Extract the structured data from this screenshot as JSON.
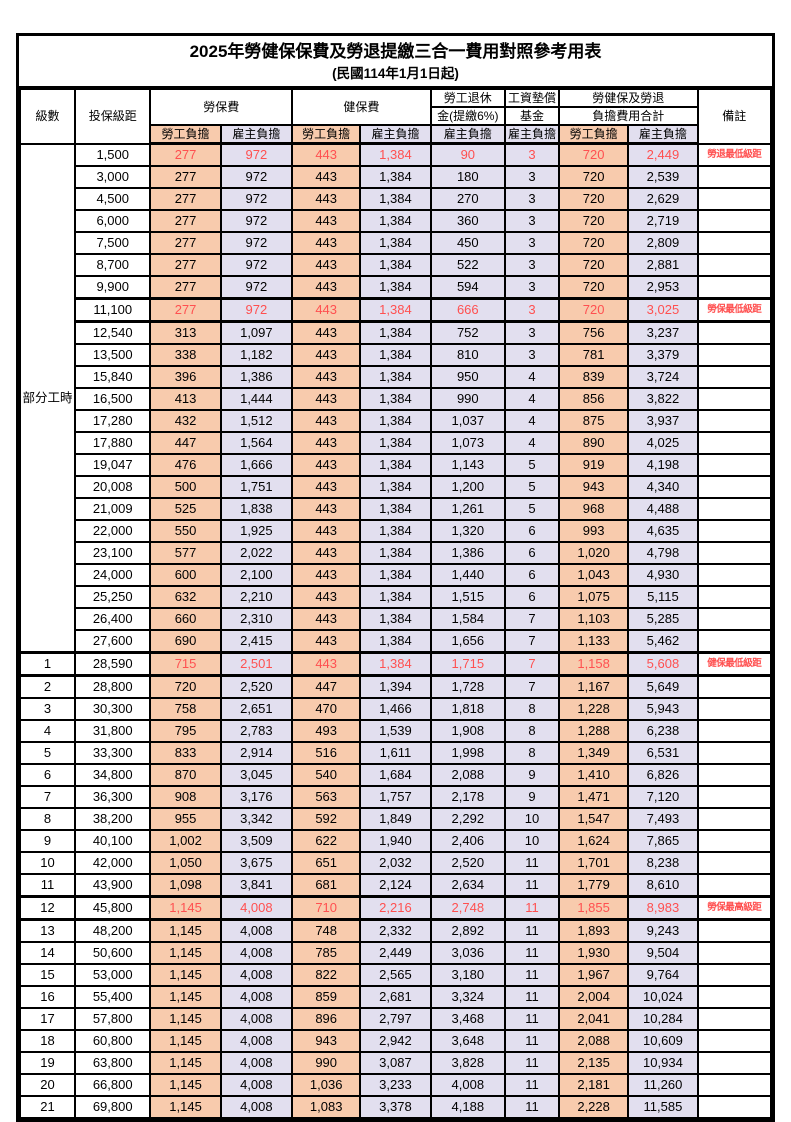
{
  "title": "2025年勞健保保費及勞退提繳三合一費用對照參考用表",
  "subtitle": "(民國114年1月1日起)",
  "header": {
    "level": "級數",
    "salary": "投保級距",
    "labor": "勞保費",
    "health": "健保費",
    "pension_line1": "勞工退休",
    "pension_line2": "金(提繳6%)",
    "wage_fund_line1": "工資墊償",
    "wage_fund_line2": "基金",
    "total_line1": "勞健保及勞退",
    "total_line2": "負擔費用合計",
    "remark": "備註",
    "employee": "勞工負擔",
    "employer": "雇主負擔"
  },
  "part_time_label": "部分工時",
  "colors": {
    "employee_bg": "#F8CBAD",
    "employer_bg": "#E2DFEF",
    "highlight_red": "#FF5050",
    "border": "#000000"
  },
  "rows": [
    {
      "level": "",
      "salary": "1,500",
      "cells": [
        "277",
        "972",
        "443",
        "1,384",
        "90",
        "3",
        "720",
        "2,449"
      ],
      "remark": "勞退最低級距",
      "red": true,
      "thick": false
    },
    {
      "level": "",
      "salary": "3,000",
      "cells": [
        "277",
        "972",
        "443",
        "1,384",
        "180",
        "3",
        "720",
        "2,539"
      ],
      "remark": "",
      "red": false,
      "thick": false
    },
    {
      "level": "",
      "salary": "4,500",
      "cells": [
        "277",
        "972",
        "443",
        "1,384",
        "270",
        "3",
        "720",
        "2,629"
      ],
      "remark": "",
      "red": false,
      "thick": false
    },
    {
      "level": "",
      "salary": "6,000",
      "cells": [
        "277",
        "972",
        "443",
        "1,384",
        "360",
        "3",
        "720",
        "2,719"
      ],
      "remark": "",
      "red": false,
      "thick": false
    },
    {
      "level": "",
      "salary": "7,500",
      "cells": [
        "277",
        "972",
        "443",
        "1,384",
        "450",
        "3",
        "720",
        "2,809"
      ],
      "remark": "",
      "red": false,
      "thick": false
    },
    {
      "level": "",
      "salary": "8,700",
      "cells": [
        "277",
        "972",
        "443",
        "1,384",
        "522",
        "3",
        "720",
        "2,881"
      ],
      "remark": "",
      "red": false,
      "thick": false
    },
    {
      "level": "",
      "salary": "9,900",
      "cells": [
        "277",
        "972",
        "443",
        "1,384",
        "594",
        "3",
        "720",
        "2,953"
      ],
      "remark": "",
      "red": false,
      "thick": false
    },
    {
      "level": "",
      "salary": "11,100",
      "cells": [
        "277",
        "972",
        "443",
        "1,384",
        "666",
        "3",
        "720",
        "3,025"
      ],
      "remark": "勞保最低級距",
      "red": true,
      "thick": true
    },
    {
      "level": "",
      "salary": "12,540",
      "cells": [
        "313",
        "1,097",
        "443",
        "1,384",
        "752",
        "3",
        "756",
        "3,237"
      ],
      "remark": "",
      "red": false,
      "thick": false
    },
    {
      "level": "",
      "salary": "13,500",
      "cells": [
        "338",
        "1,182",
        "443",
        "1,384",
        "810",
        "3",
        "781",
        "3,379"
      ],
      "remark": "",
      "red": false,
      "thick": false
    },
    {
      "level": "",
      "salary": "15,840",
      "cells": [
        "396",
        "1,386",
        "443",
        "1,384",
        "950",
        "4",
        "839",
        "3,724"
      ],
      "remark": "",
      "red": false,
      "thick": false
    },
    {
      "level": "",
      "salary": "16,500",
      "cells": [
        "413",
        "1,444",
        "443",
        "1,384",
        "990",
        "4",
        "856",
        "3,822"
      ],
      "remark": "",
      "red": false,
      "thick": false
    },
    {
      "level": "",
      "salary": "17,280",
      "cells": [
        "432",
        "1,512",
        "443",
        "1,384",
        "1,037",
        "4",
        "875",
        "3,937"
      ],
      "remark": "",
      "red": false,
      "thick": false
    },
    {
      "level": "",
      "salary": "17,880",
      "cells": [
        "447",
        "1,564",
        "443",
        "1,384",
        "1,073",
        "4",
        "890",
        "4,025"
      ],
      "remark": "",
      "red": false,
      "thick": false
    },
    {
      "level": "",
      "salary": "19,047",
      "cells": [
        "476",
        "1,666",
        "443",
        "1,384",
        "1,143",
        "5",
        "919",
        "4,198"
      ],
      "remark": "",
      "red": false,
      "thick": false
    },
    {
      "level": "",
      "salary": "20,008",
      "cells": [
        "500",
        "1,751",
        "443",
        "1,384",
        "1,200",
        "5",
        "943",
        "4,340"
      ],
      "remark": "",
      "red": false,
      "thick": false
    },
    {
      "level": "",
      "salary": "21,009",
      "cells": [
        "525",
        "1,838",
        "443",
        "1,384",
        "1,261",
        "5",
        "968",
        "4,488"
      ],
      "remark": "",
      "red": false,
      "thick": false
    },
    {
      "level": "",
      "salary": "22,000",
      "cells": [
        "550",
        "1,925",
        "443",
        "1,384",
        "1,320",
        "6",
        "993",
        "4,635"
      ],
      "remark": "",
      "red": false,
      "thick": false
    },
    {
      "level": "",
      "salary": "23,100",
      "cells": [
        "577",
        "2,022",
        "443",
        "1,384",
        "1,386",
        "6",
        "1,020",
        "4,798"
      ],
      "remark": "",
      "red": false,
      "thick": false
    },
    {
      "level": "",
      "salary": "24,000",
      "cells": [
        "600",
        "2,100",
        "443",
        "1,384",
        "1,440",
        "6",
        "1,043",
        "4,930"
      ],
      "remark": "",
      "red": false,
      "thick": false
    },
    {
      "level": "",
      "salary": "25,250",
      "cells": [
        "632",
        "2,210",
        "443",
        "1,384",
        "1,515",
        "6",
        "1,075",
        "5,115"
      ],
      "remark": "",
      "red": false,
      "thick": false
    },
    {
      "level": "",
      "salary": "26,400",
      "cells": [
        "660",
        "2,310",
        "443",
        "1,384",
        "1,584",
        "7",
        "1,103",
        "5,285"
      ],
      "remark": "",
      "red": false,
      "thick": false
    },
    {
      "level": "",
      "salary": "27,600",
      "cells": [
        "690",
        "2,415",
        "443",
        "1,384",
        "1,656",
        "7",
        "1,133",
        "5,462"
      ],
      "remark": "",
      "red": false,
      "thick": false
    },
    {
      "level": "1",
      "salary": "28,590",
      "cells": [
        "715",
        "2,501",
        "443",
        "1,384",
        "1,715",
        "7",
        "1,158",
        "5,608"
      ],
      "remark": "健保最低級距",
      "red": true,
      "thick": true
    },
    {
      "level": "2",
      "salary": "28,800",
      "cells": [
        "720",
        "2,520",
        "447",
        "1,394",
        "1,728",
        "7",
        "1,167",
        "5,649"
      ],
      "remark": "",
      "red": false,
      "thick": false
    },
    {
      "level": "3",
      "salary": "30,300",
      "cells": [
        "758",
        "2,651",
        "470",
        "1,466",
        "1,818",
        "8",
        "1,228",
        "5,943"
      ],
      "remark": "",
      "red": false,
      "thick": false
    },
    {
      "level": "4",
      "salary": "31,800",
      "cells": [
        "795",
        "2,783",
        "493",
        "1,539",
        "1,908",
        "8",
        "1,288",
        "6,238"
      ],
      "remark": "",
      "red": false,
      "thick": false
    },
    {
      "level": "5",
      "salary": "33,300",
      "cells": [
        "833",
        "2,914",
        "516",
        "1,611",
        "1,998",
        "8",
        "1,349",
        "6,531"
      ],
      "remark": "",
      "red": false,
      "thick": false
    },
    {
      "level": "6",
      "salary": "34,800",
      "cells": [
        "870",
        "3,045",
        "540",
        "1,684",
        "2,088",
        "9",
        "1,410",
        "6,826"
      ],
      "remark": "",
      "red": false,
      "thick": false
    },
    {
      "level": "7",
      "salary": "36,300",
      "cells": [
        "908",
        "3,176",
        "563",
        "1,757",
        "2,178",
        "9",
        "1,471",
        "7,120"
      ],
      "remark": "",
      "red": false,
      "thick": false
    },
    {
      "level": "8",
      "salary": "38,200",
      "cells": [
        "955",
        "3,342",
        "592",
        "1,849",
        "2,292",
        "10",
        "1,547",
        "7,493"
      ],
      "remark": "",
      "red": false,
      "thick": false
    },
    {
      "level": "9",
      "salary": "40,100",
      "cells": [
        "1,002",
        "3,509",
        "622",
        "1,940",
        "2,406",
        "10",
        "1,624",
        "7,865"
      ],
      "remark": "",
      "red": false,
      "thick": false
    },
    {
      "level": "10",
      "salary": "42,000",
      "cells": [
        "1,050",
        "3,675",
        "651",
        "2,032",
        "2,520",
        "11",
        "1,701",
        "8,238"
      ],
      "remark": "",
      "red": false,
      "thick": false
    },
    {
      "level": "11",
      "salary": "43,900",
      "cells": [
        "1,098",
        "3,841",
        "681",
        "2,124",
        "2,634",
        "11",
        "1,779",
        "8,610"
      ],
      "remark": "",
      "red": false,
      "thick": false
    },
    {
      "level": "12",
      "salary": "45,800",
      "cells": [
        "1,145",
        "4,008",
        "710",
        "2,216",
        "2,748",
        "11",
        "1,855",
        "8,983"
      ],
      "remark": "勞保最高級距",
      "red": true,
      "thick": true
    },
    {
      "level": "13",
      "salary": "48,200",
      "cells": [
        "1,145",
        "4,008",
        "748",
        "2,332",
        "2,892",
        "11",
        "1,893",
        "9,243"
      ],
      "remark": "",
      "red": false,
      "thick": false
    },
    {
      "level": "14",
      "salary": "50,600",
      "cells": [
        "1,145",
        "4,008",
        "785",
        "2,449",
        "3,036",
        "11",
        "1,930",
        "9,504"
      ],
      "remark": "",
      "red": false,
      "thick": false
    },
    {
      "level": "15",
      "salary": "53,000",
      "cells": [
        "1,145",
        "4,008",
        "822",
        "2,565",
        "3,180",
        "11",
        "1,967",
        "9,764"
      ],
      "remark": "",
      "red": false,
      "thick": false
    },
    {
      "level": "16",
      "salary": "55,400",
      "cells": [
        "1,145",
        "4,008",
        "859",
        "2,681",
        "3,324",
        "11",
        "2,004",
        "10,024"
      ],
      "remark": "",
      "red": false,
      "thick": false
    },
    {
      "level": "17",
      "salary": "57,800",
      "cells": [
        "1,145",
        "4,008",
        "896",
        "2,797",
        "3,468",
        "11",
        "2,041",
        "10,284"
      ],
      "remark": "",
      "red": false,
      "thick": false
    },
    {
      "level": "18",
      "salary": "60,800",
      "cells": [
        "1,145",
        "4,008",
        "943",
        "2,942",
        "3,648",
        "11",
        "2,088",
        "10,609"
      ],
      "remark": "",
      "red": false,
      "thick": false
    },
    {
      "level": "19",
      "salary": "63,800",
      "cells": [
        "1,145",
        "4,008",
        "990",
        "3,087",
        "3,828",
        "11",
        "2,135",
        "10,934"
      ],
      "remark": "",
      "red": false,
      "thick": false
    },
    {
      "level": "20",
      "salary": "66,800",
      "cells": [
        "1,145",
        "4,008",
        "1,036",
        "3,233",
        "4,008",
        "11",
        "2,181",
        "11,260"
      ],
      "remark": "",
      "red": false,
      "thick": false
    },
    {
      "level": "21",
      "salary": "69,800",
      "cells": [
        "1,145",
        "4,008",
        "1,083",
        "3,378",
        "4,188",
        "11",
        "2,228",
        "11,585"
      ],
      "remark": "",
      "red": false,
      "thick": false
    }
  ]
}
